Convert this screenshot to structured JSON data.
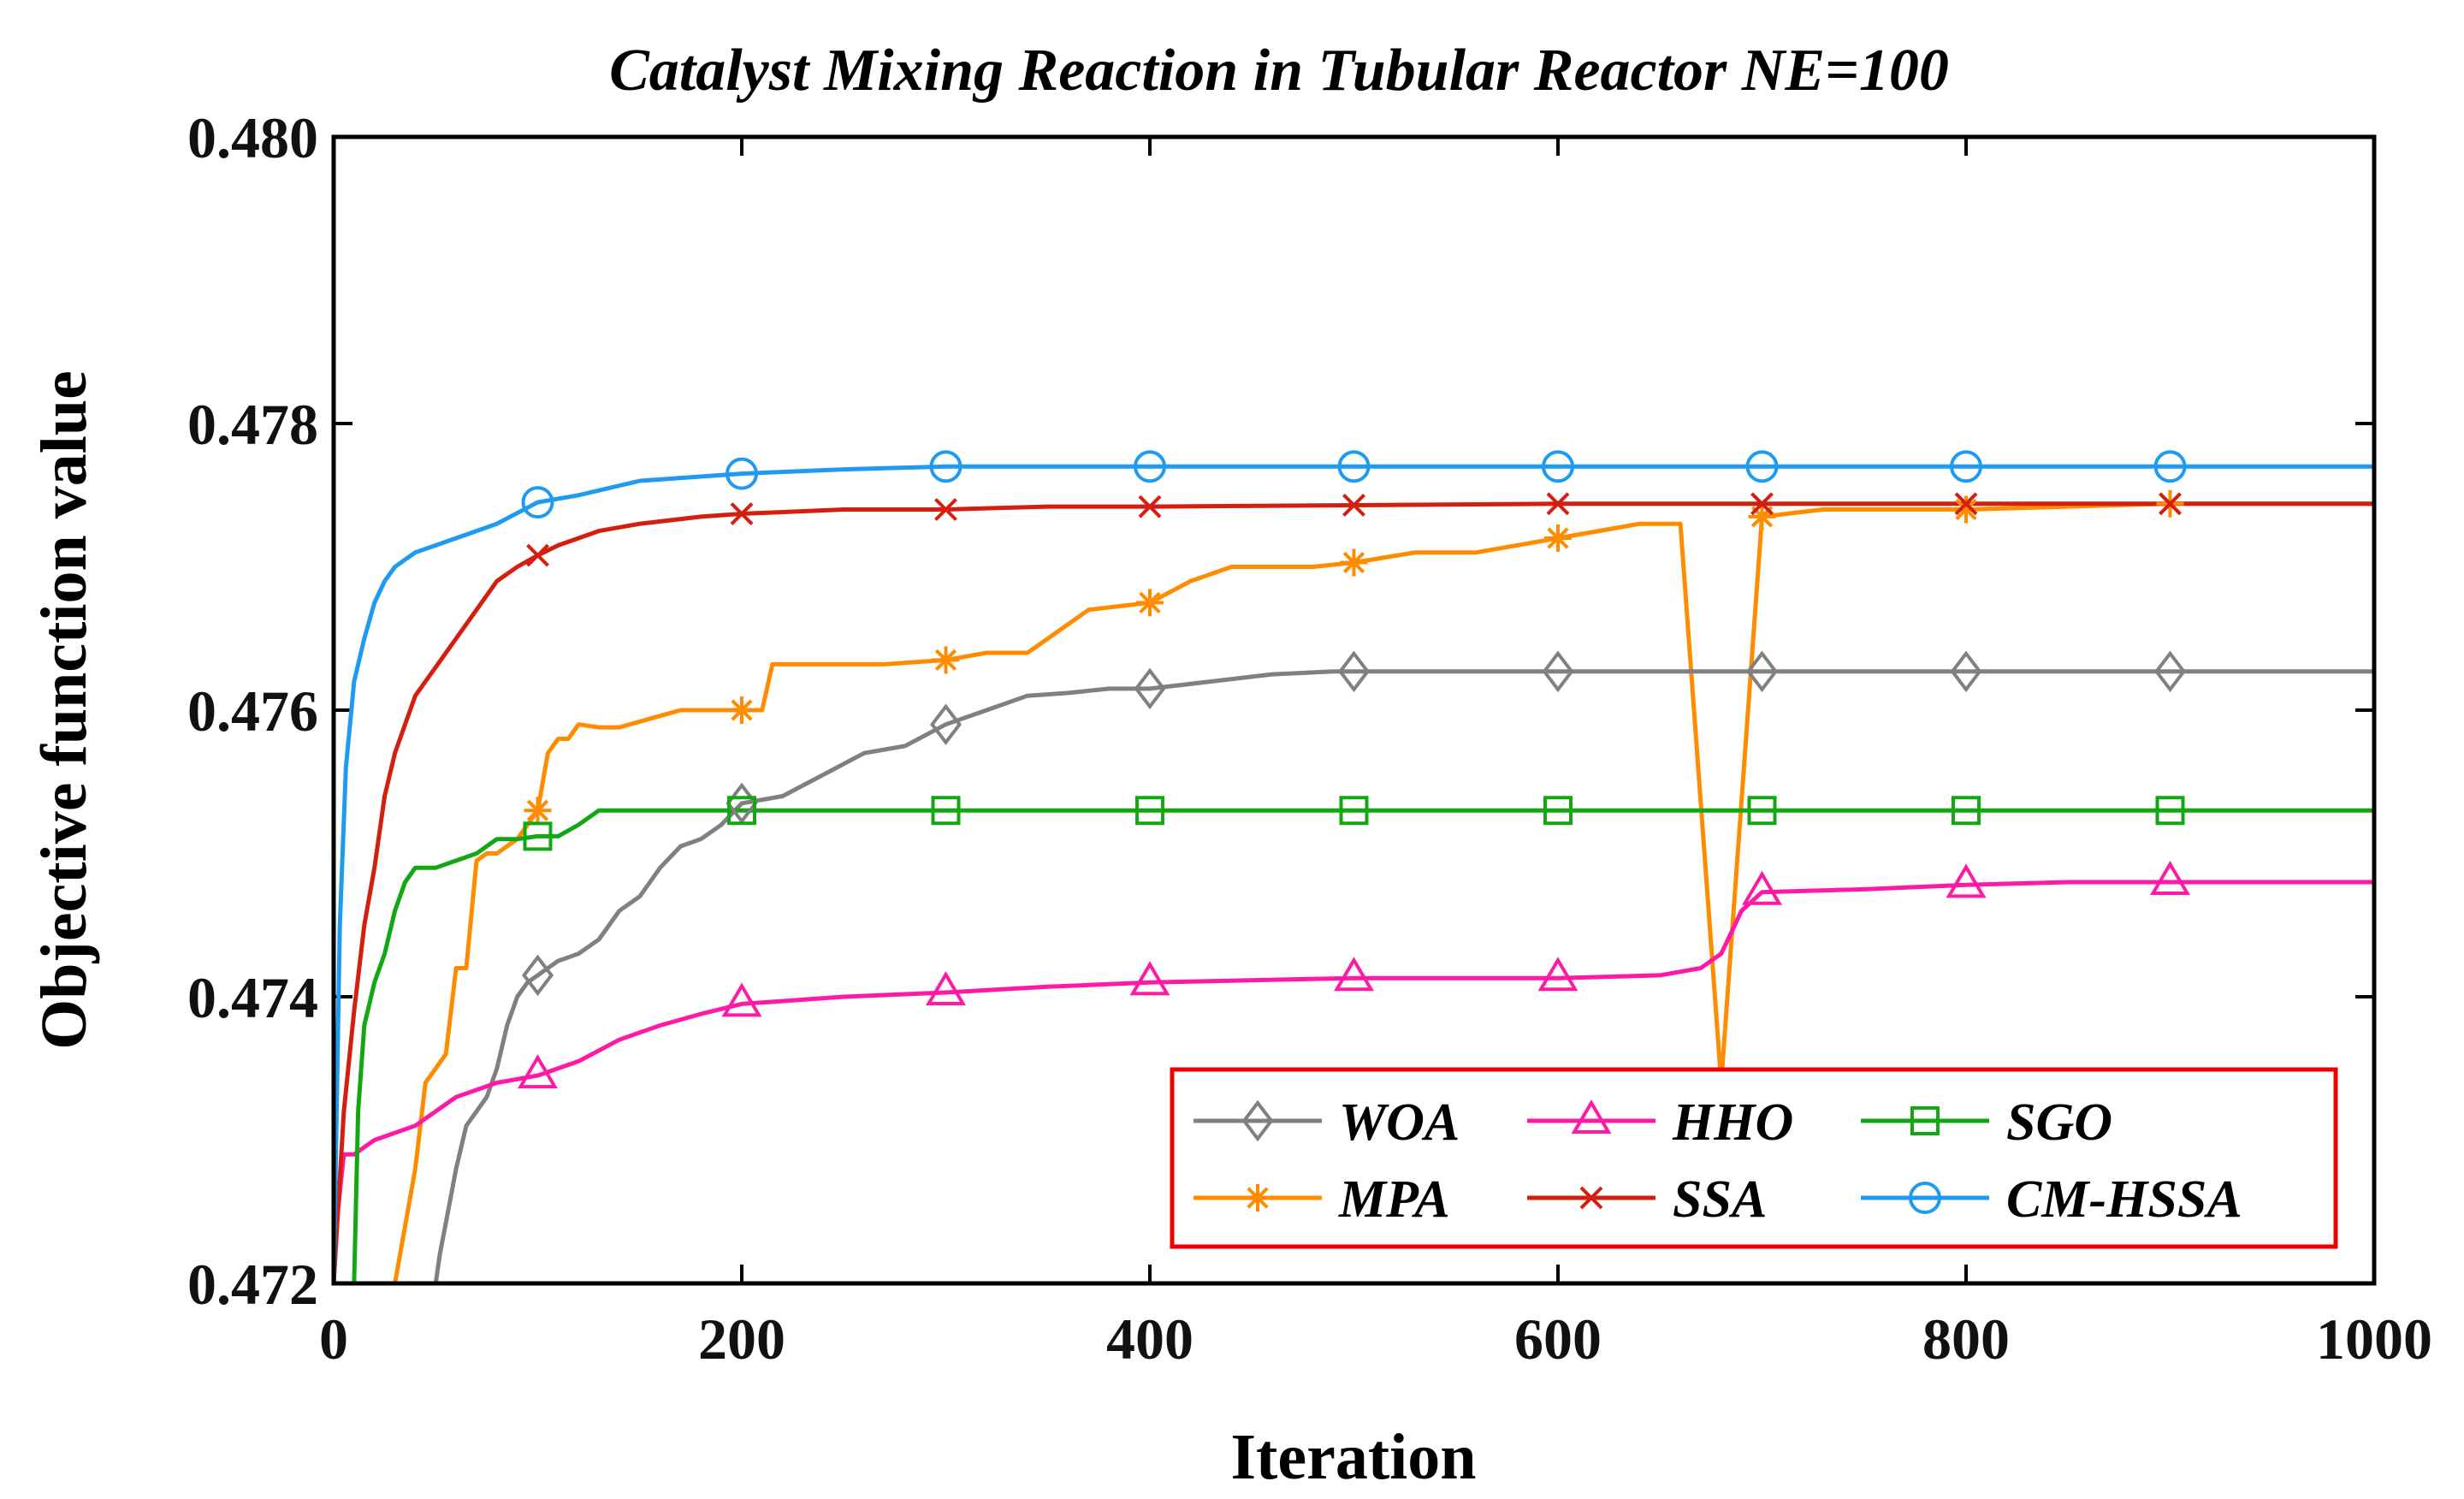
{
  "chart_data": {
    "type": "line",
    "title": "Catalyst Mixing Reaction in Tubular Reactor NE=100",
    "xlabel": "Iteration",
    "ylabel": "Objective function value",
    "xlim": [
      0,
      1000
    ],
    "ylim": [
      0.472,
      0.48
    ],
    "xticks": [
      0,
      200,
      400,
      600,
      800,
      1000
    ],
    "xtick_labels": [
      "0",
      "200",
      "400",
      "600",
      "800",
      "1000"
    ],
    "yticks": [
      0.472,
      0.474,
      0.476,
      0.478,
      0.48
    ],
    "ytick_labels": [
      "0.472",
      "0.474",
      "0.476",
      "0.478",
      "0.480"
    ],
    "grid": false,
    "legend_position": "bottom-right",
    "series": [
      {
        "name": "WOA",
        "color": "#808080",
        "marker": "diamond",
        "x": [
          50,
          52,
          56,
          60,
          65,
          70,
          75,
          80,
          85,
          90,
          95,
          100,
          105,
          110,
          120,
          130,
          140,
          150,
          160,
          170,
          180,
          190,
          200,
          220,
          240,
          260,
          280,
          300,
          320,
          340,
          360,
          380,
          400,
          430,
          460,
          490,
          500,
          600,
          700,
          800,
          900,
          1000
        ],
        "values": [
          0.472,
          0.4722,
          0.4725,
          0.4728,
          0.4731,
          0.4732,
          0.4733,
          0.4735,
          0.4738,
          0.474,
          0.4741,
          0.47415,
          0.4742,
          0.47425,
          0.4743,
          0.4744,
          0.4746,
          0.4747,
          0.4749,
          0.47505,
          0.4751,
          0.4752,
          0.47535,
          0.4754,
          0.47555,
          0.4757,
          0.47575,
          0.4759,
          0.476,
          0.4761,
          0.47612,
          0.47615,
          0.47615,
          0.4762,
          0.47625,
          0.47627,
          0.47627,
          0.47627,
          0.47627,
          0.47627,
          0.47627,
          0.47627
        ]
      },
      {
        "name": "HHO",
        "color": "#ff1aa6",
        "marker": "triangle",
        "x": [
          0,
          2,
          5,
          10,
          20,
          40,
          60,
          80,
          100,
          120,
          140,
          160,
          180,
          200,
          250,
          300,
          350,
          400,
          500,
          600,
          650,
          670,
          680,
          690,
          700,
          750,
          800,
          850,
          900,
          1000
        ],
        "values": [
          0.472,
          0.4725,
          0.4729,
          0.4729,
          0.473,
          0.4731,
          0.4733,
          0.4734,
          0.47345,
          0.47355,
          0.4737,
          0.4738,
          0.47388,
          0.47395,
          0.474,
          0.47403,
          0.47407,
          0.4741,
          0.47413,
          0.47413,
          0.47415,
          0.4742,
          0.4743,
          0.4746,
          0.47473,
          0.47475,
          0.47478,
          0.4748,
          0.4748,
          0.4748
        ]
      },
      {
        "name": "SGO",
        "color": "#13a813",
        "marker": "square",
        "x": [
          10,
          12,
          15,
          20,
          25,
          30,
          35,
          40,
          50,
          60,
          70,
          80,
          90,
          100,
          110,
          120,
          130,
          150,
          160,
          170,
          180,
          190,
          200,
          300,
          400,
          500,
          600,
          700,
          800,
          900,
          1000
        ],
        "values": [
          0.472,
          0.4732,
          0.4738,
          0.4741,
          0.4743,
          0.4746,
          0.4748,
          0.4749,
          0.4749,
          0.47495,
          0.475,
          0.4751,
          0.4751,
          0.47512,
          0.47512,
          0.4752,
          0.4753,
          0.4753,
          0.4753,
          0.4753,
          0.4753,
          0.4753,
          0.4753,
          0.4753,
          0.4753,
          0.4753,
          0.4753,
          0.4753,
          0.4753,
          0.4753,
          0.4753
        ]
      },
      {
        "name": "MPA",
        "color": "#ff8c00",
        "marker": "asterisk",
        "x": [
          30,
          35,
          40,
          45,
          50,
          55,
          60,
          65,
          70,
          75,
          80,
          85,
          90,
          95,
          100,
          105,
          110,
          115,
          120,
          130,
          140,
          170,
          180,
          200,
          210,
          215,
          240,
          270,
          300,
          320,
          340,
          350,
          360,
          370,
          400,
          420,
          440,
          480,
          500,
          530,
          560,
          600,
          640,
          660,
          680,
          700,
          730,
          760,
          800,
          900,
          1000
        ],
        "values": [
          0.472,
          0.4724,
          0.4728,
          0.4734,
          0.4735,
          0.4736,
          0.4742,
          0.4742,
          0.47495,
          0.475,
          0.475,
          0.47505,
          0.4751,
          0.4752,
          0.4753,
          0.4757,
          0.4758,
          0.4758,
          0.4759,
          0.47588,
          0.47588,
          0.476,
          0.476,
          0.476,
          0.476,
          0.47632,
          0.47632,
          0.47632,
          0.47635,
          0.4764,
          0.4764,
          0.4765,
          0.4766,
          0.4767,
          0.47675,
          0.4769,
          0.477,
          0.477,
          0.47703,
          0.4771,
          0.4771,
          0.4772,
          0.4773,
          0.4773,
          0.4734,
          0.47735,
          0.4774,
          0.4774,
          0.4774,
          0.47744,
          0.47744
        ]
      },
      {
        "name": "SSA",
        "color": "#d41e0f",
        "marker": "cross",
        "x": [
          0,
          5,
          10,
          15,
          20,
          25,
          30,
          35,
          40,
          50,
          60,
          70,
          80,
          90,
          100,
          110,
          120,
          130,
          150,
          180,
          200,
          250,
          300,
          350,
          400,
          500,
          600,
          700,
          800,
          900,
          1000
        ],
        "values": [
          0.472,
          0.4732,
          0.4739,
          0.4745,
          0.4749,
          0.4754,
          0.4757,
          0.4759,
          0.4761,
          0.4763,
          0.4765,
          0.4767,
          0.4769,
          0.477,
          0.47708,
          0.47715,
          0.4772,
          0.47725,
          0.4773,
          0.47735,
          0.47737,
          0.4774,
          0.4774,
          0.47742,
          0.47742,
          0.47743,
          0.47744,
          0.47744,
          0.47744,
          0.47744,
          0.47744
        ]
      },
      {
        "name": "CM-HSSA",
        "color": "#1e9bf0",
        "marker": "circle",
        "x": [
          0,
          3,
          6,
          10,
          15,
          20,
          25,
          30,
          40,
          50,
          60,
          70,
          80,
          100,
          120,
          150,
          200,
          250,
          300,
          400,
          500,
          600,
          700,
          800,
          900,
          1000
        ],
        "values": [
          0.472,
          0.4745,
          0.4756,
          0.4762,
          0.4765,
          0.47675,
          0.4769,
          0.477,
          0.4771,
          0.47715,
          0.4772,
          0.47725,
          0.4773,
          0.47745,
          0.4775,
          0.4776,
          0.47765,
          0.47768,
          0.4777,
          0.4777,
          0.4777,
          0.4777,
          0.4777,
          0.4777,
          0.4777,
          0.4777
        ]
      }
    ],
    "markers_at_x": [
      100,
      200,
      300,
      400,
      500,
      600,
      700,
      800,
      900
    ]
  }
}
